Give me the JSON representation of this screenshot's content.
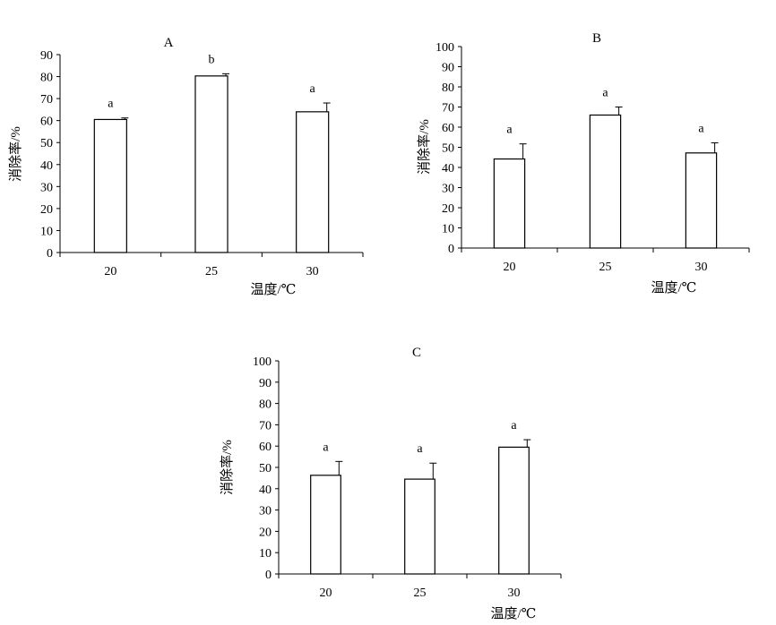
{
  "chart_data": [
    {
      "type": "bar",
      "title": "A",
      "xlabel": "温度/℃",
      "ylabel": "消除率/%",
      "categories": [
        "20",
        "25",
        "30"
      ],
      "values": [
        60.5,
        80.3,
        64.0
      ],
      "errors": [
        0.7,
        1.0,
        4.0
      ],
      "significance": [
        "a",
        "b",
        "a"
      ],
      "ylim": [
        0,
        90
      ],
      "yticks": [
        0,
        10,
        20,
        30,
        40,
        50,
        60,
        70,
        80,
        90
      ],
      "grid": false
    },
    {
      "type": "bar",
      "title": "B",
      "xlabel": "温度/℃",
      "ylabel": "消除率/%",
      "categories": [
        "20",
        "25",
        "30"
      ],
      "values": [
        44.2,
        66.0,
        47.2
      ],
      "errors": [
        7.5,
        4.0,
        5.0
      ],
      "significance": [
        "a",
        "a",
        "a"
      ],
      "ylim": [
        0,
        100
      ],
      "yticks": [
        0,
        10,
        20,
        30,
        40,
        50,
        60,
        70,
        80,
        90,
        100
      ],
      "grid": false
    },
    {
      "type": "bar",
      "title": "C",
      "xlabel": "温度/℃",
      "ylabel": "消除率/%",
      "categories": [
        "20",
        "25",
        "30"
      ],
      "values": [
        46.3,
        44.5,
        59.5
      ],
      "errors": [
        6.5,
        7.5,
        3.5
      ],
      "significance": [
        "a",
        "a",
        "a"
      ],
      "ylim": [
        0,
        100
      ],
      "yticks": [
        0,
        10,
        20,
        30,
        40,
        50,
        60,
        70,
        80,
        90,
        100
      ],
      "grid": false
    }
  ]
}
